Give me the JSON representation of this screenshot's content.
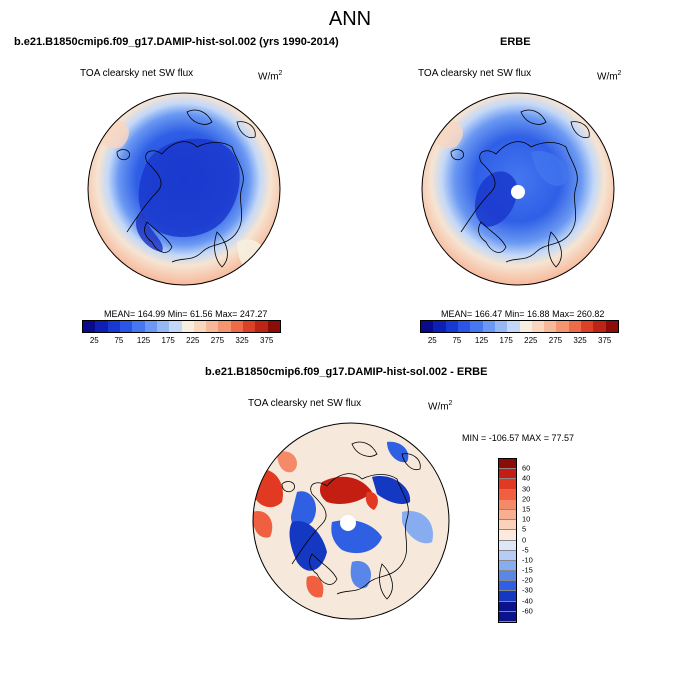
{
  "title": "ANN",
  "panels": [
    {
      "title": "b.e21.B1850cmip6.f09_g17.DAMIP-hist-sol.002 (yrs 1990-2014)",
      "variable": "TOA clearsky net SW flux",
      "units_base": "W/m",
      "units_exp": "2",
      "stats": "MEAN= 164.99  Min=  61.56  Max= 247.27"
    },
    {
      "title": "ERBE",
      "variable": "TOA clearsky net SW flux",
      "units_base": "W/m",
      "units_exp": "2",
      "stats": "MEAN= 166.47  Min=  16.88  Max= 260.82"
    },
    {
      "title": "b.e21.B1850cmip6.f09_g17.DAMIP-hist-sol.002 - ERBE",
      "variable": "TOA clearsky net SW flux",
      "units_base": "W/m",
      "units_exp": "2",
      "stats": "MIN = -106.57 MAX =  77.57"
    }
  ],
  "colorbar_abs": {
    "labels": [
      "25",
      "75",
      "125",
      "175",
      "225",
      "275",
      "325",
      "375"
    ],
    "colors": [
      "#0a0a8c",
      "#0d1fb4",
      "#1838d2",
      "#2a55e6",
      "#4577f0",
      "#6a98f2",
      "#95b8f5",
      "#c3d8f8",
      "#f6efe0",
      "#fad6bf",
      "#f7b89a",
      "#f4956f",
      "#ee6b48",
      "#dc4128",
      "#bc2415",
      "#8c0d08"
    ]
  },
  "colorbar_diff": {
    "labels": [
      "60",
      "40",
      "30",
      "20",
      "15",
      "10",
      "5",
      "0",
      "-5",
      "-10",
      "-15",
      "-20",
      "-30",
      "-40",
      "-60"
    ],
    "colors": [
      "#8c0d08",
      "#c41e12",
      "#e23a22",
      "#f06040",
      "#f58a68",
      "#f8ae90",
      "#fad2ba",
      "#fbeadd",
      "#dde7f8",
      "#b5cdf4",
      "#87acef",
      "#5a86ea",
      "#2f5fe2",
      "#1538c2",
      "#0a138c"
    ]
  }
}
